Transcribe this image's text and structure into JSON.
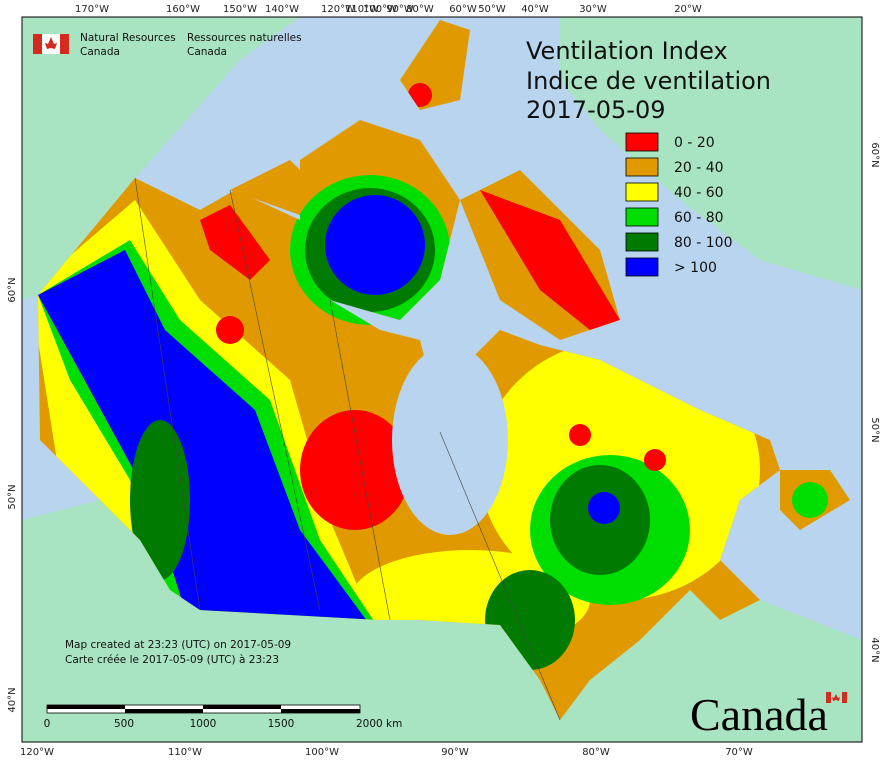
{
  "header": {
    "agency_en_1": "Natural Resources",
    "agency_en_2": "Canada",
    "agency_fr_1": "Ressources naturelles",
    "agency_fr_2": "Canada"
  },
  "title": {
    "line1": "Ventilation Index",
    "line2": "Indice de ventilation",
    "date": "2017-05-09"
  },
  "legend": [
    {
      "label": "0 - 20",
      "color": "#ff0000"
    },
    {
      "label": "20 - 40",
      "color": "#e09a00"
    },
    {
      "label": "40 - 60",
      "color": "#ffff00"
    },
    {
      "label": "60 - 80",
      "color": "#00dd00"
    },
    {
      "label": "80 - 100",
      "color": "#007a00"
    },
    {
      "label": "> 100",
      "color": "#0000ff"
    }
  ],
  "graticule": {
    "top": [
      "170°W",
      "160°W",
      "150°W",
      "140°W",
      "120°W",
      "110°W",
      "100°W",
      "90°W",
      "80°W",
      "60°W",
      "50°W",
      "40°W",
      "30°W",
      "20°W"
    ],
    "bottom": [
      "120°W",
      "110°W",
      "100°W",
      "90°W",
      "80°W",
      "70°W"
    ],
    "left": [
      "60°N",
      "50°N",
      "40°N"
    ],
    "right": [
      "60°N",
      "50°N",
      "40°N"
    ]
  },
  "footer": {
    "created_en": "Map created at 23:23 (UTC) on 2017-05-09",
    "created_fr": "Carte créée le 2017-05-09 (UTC) à 23:23"
  },
  "scale_bar": [
    "0",
    "500",
    "1000",
    "1500",
    "2000 km"
  ],
  "wordmark": "Canada"
}
